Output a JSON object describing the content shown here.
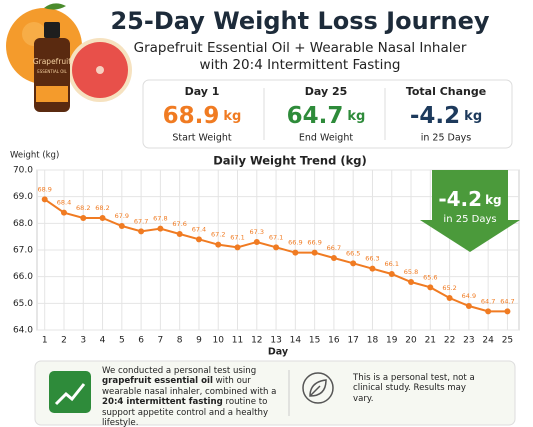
{
  "header": {
    "title": "25-Day Weight Loss Journey",
    "subtitle_lines": [
      "Grapefruit Essential Oil + Wearable Nasal Inhaler",
      "with 20:4 Intermittent Fasting"
    ]
  },
  "product": {
    "label": "Grapefruit",
    "sublabel": "ESSENTIAL OIL"
  },
  "stats": [
    {
      "label": "Day 1",
      "value": 68.9,
      "unit": "kg",
      "caption": "Start Weight",
      "color": "#f07b22"
    },
    {
      "label": "Day 25",
      "value": 64.7,
      "unit": "kg",
      "caption": "End Weight",
      "color": "#2e8b3a"
    },
    {
      "label": "Total Change",
      "value": -4.2,
      "unit": "kg",
      "caption": "in 25 Days",
      "color": "#1d3a5c"
    }
  ],
  "chart_data": {
    "type": "line",
    "title": "Daily Weight Trend (kg)",
    "y_label": "Weight (kg)",
    "x_label": "Day",
    "x": [
      1,
      2,
      3,
      4,
      5,
      6,
      7,
      8,
      9,
      10,
      11,
      12,
      13,
      14,
      15,
      16,
      17,
      18,
      19,
      20,
      21,
      22,
      23,
      24,
      25
    ],
    "series": [
      {
        "name": "Weight",
        "color": "#f07b22",
        "values": [
          68.9,
          68.4,
          68.2,
          68.2,
          67.9,
          67.7,
          67.8,
          67.6,
          67.4,
          67.2,
          67.1,
          67.3,
          67.1,
          66.9,
          66.9,
          66.7,
          66.5,
          66.3,
          66.1,
          65.8,
          65.6,
          65.2,
          64.9,
          64.7,
          64.7
        ]
      }
    ],
    "xlim": [
      0.6,
      25.6
    ],
    "xticks": [
      1,
      2,
      3,
      4,
      5,
      6,
      7,
      8,
      9,
      10,
      11,
      12,
      13,
      14,
      15,
      16,
      17,
      18,
      19,
      20,
      21,
      22,
      23,
      24,
      25
    ],
    "ylim": [
      64,
      70
    ],
    "yticks": [
      {
        "value": 64,
        "label": "64.0"
      },
      {
        "value": 65,
        "label": "65.0"
      },
      {
        "value": 66,
        "label": "66.0"
      },
      {
        "value": 67,
        "label": "67.0"
      },
      {
        "value": 68,
        "label": "68.0"
      },
      {
        "value": 69,
        "label": "69.0"
      },
      {
        "value": 70,
        "label": "70.0"
      }
    ],
    "grid": true
  },
  "callout": {
    "value": -4.2,
    "unit": "kg",
    "caption": "in 25 Days"
  },
  "footer": {
    "left": [
      {
        "text": "We conducted a personal test using ",
        "bold": false
      },
      {
        "text": "grapefruit essential oil",
        "bold": true
      },
      {
        "text": " with our wearable nasal inhaler, combined with a ",
        "bold": false
      },
      {
        "text": "20:4 intermittent fasting",
        "bold": true
      },
      {
        "text": " routine to support appetite control and a healthy lifestyle.",
        "bold": false
      }
    ],
    "right": "This is a personal test, not a clinical study. Results may vary."
  }
}
